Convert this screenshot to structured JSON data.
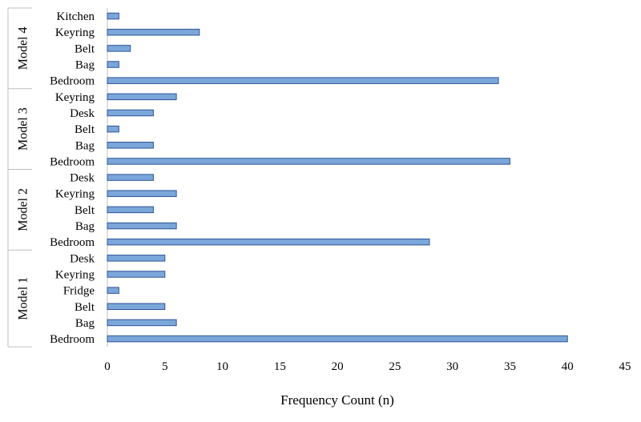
{
  "chart_data": {
    "type": "bar",
    "orientation": "horizontal",
    "xlabel": "Frequency Count (n)",
    "xlim": [
      0,
      45
    ],
    "xticks": [
      0,
      5,
      10,
      15,
      20,
      25,
      30,
      35,
      40,
      45
    ],
    "grid": false,
    "legend": "none",
    "colors": {
      "bar_fill": "#7ba6d9",
      "bar_stroke": "#2f5597",
      "axis": "#bfbfbf"
    },
    "groups": [
      {
        "name": "Model 4",
        "bars": [
          {
            "label": "Kitchen",
            "value": 1
          },
          {
            "label": "Keyring",
            "value": 8
          },
          {
            "label": "Belt",
            "value": 2
          },
          {
            "label": "Bag",
            "value": 1
          },
          {
            "label": "Bedroom",
            "value": 34
          }
        ]
      },
      {
        "name": "Model 3",
        "bars": [
          {
            "label": "Keyring",
            "value": 6
          },
          {
            "label": "Desk",
            "value": 4
          },
          {
            "label": "Belt",
            "value": 1
          },
          {
            "label": "Bag",
            "value": 4
          },
          {
            "label": "Bedroom",
            "value": 35
          }
        ]
      },
      {
        "name": "Model 2",
        "bars": [
          {
            "label": "Desk",
            "value": 4
          },
          {
            "label": "Keyring",
            "value": 6
          },
          {
            "label": "Belt",
            "value": 4
          },
          {
            "label": "Bag",
            "value": 6
          },
          {
            "label": "Bedroom",
            "value": 28
          }
        ]
      },
      {
        "name": "Model 1",
        "bars": [
          {
            "label": "Desk",
            "value": 5
          },
          {
            "label": "Keyring",
            "value": 5
          },
          {
            "label": "Fridge",
            "value": 1
          },
          {
            "label": "Belt",
            "value": 5
          },
          {
            "label": "Bag",
            "value": 6
          },
          {
            "label": "Bedroom",
            "value": 40
          }
        ]
      }
    ]
  }
}
